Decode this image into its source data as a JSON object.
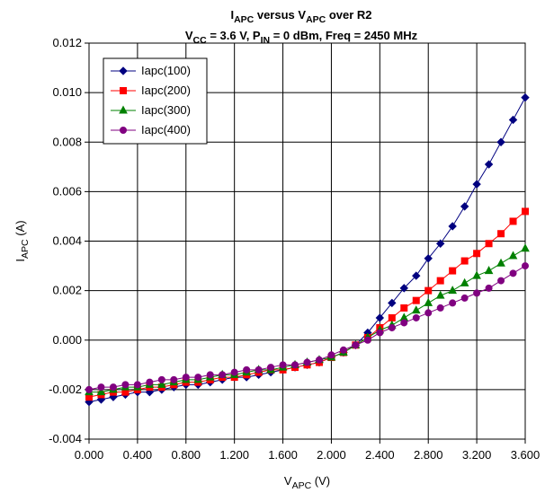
{
  "chart_data": {
    "type": "line",
    "title": [
      "I",
      {
        "text": "APC",
        "sub": true
      },
      " versus V",
      {
        "text": "APC",
        "sub": true
      },
      " over R2"
    ],
    "subtitle": [
      "V",
      {
        "text": "CC",
        "sub": true
      },
      " = 3.6 V, P",
      {
        "text": "IN",
        "sub": true
      },
      " = 0 dBm, Freq = 2450 MHz"
    ],
    "x_label": [
      "V",
      {
        "text": "APC",
        "sub": true
      },
      " (V)"
    ],
    "y_label": [
      "I",
      {
        "text": "APC",
        "sub": true
      },
      " (A)"
    ],
    "x": [
      0,
      0.1,
      0.2,
      0.3,
      0.4,
      0.5,
      0.6,
      0.7,
      0.8,
      0.9,
      1.0,
      1.1,
      1.2,
      1.3,
      1.4,
      1.5,
      1.6,
      1.7,
      1.8,
      1.9,
      2.0,
      2.1,
      2.2,
      2.3,
      2.4,
      2.5,
      2.6,
      2.7,
      2.8,
      2.9,
      3.0,
      3.1,
      3.2,
      3.3,
      3.4,
      3.5,
      3.6
    ],
    "series": [
      {
        "name": "Iapc(100)",
        "color": "#000080",
        "marker": "diamond",
        "values": [
          -0.0025,
          -0.0024,
          -0.0023,
          -0.0022,
          -0.0021,
          -0.0021,
          -0.002,
          -0.0019,
          -0.0018,
          -0.0018,
          -0.0017,
          -0.0016,
          -0.0015,
          -0.0015,
          -0.0014,
          -0.0013,
          -0.0012,
          -0.0011,
          -0.001,
          -0.0009,
          -0.0007,
          -0.0005,
          -0.0002,
          0.0003,
          0.0009,
          0.0015,
          0.0021,
          0.0026,
          0.0033,
          0.0039,
          0.0046,
          0.0054,
          0.0063,
          0.0071,
          0.008,
          0.0089,
          0.0098
        ]
      },
      {
        "name": "Iapc(200)",
        "color": "#ff0000",
        "marker": "square",
        "values": [
          -0.0023,
          -0.0022,
          -0.0021,
          -0.0021,
          -0.002,
          -0.0019,
          -0.0019,
          -0.0018,
          -0.0017,
          -0.0017,
          -0.0016,
          -0.0015,
          -0.0015,
          -0.0014,
          -0.0013,
          -0.0012,
          -0.0012,
          -0.0011,
          -0.001,
          -0.0009,
          -0.0007,
          -0.0005,
          -0.0002,
          0.0001,
          0.0005,
          0.0009,
          0.0013,
          0.0016,
          0.002,
          0.0024,
          0.0028,
          0.0032,
          0.0035,
          0.0039,
          0.0043,
          0.0048,
          0.0052
        ]
      },
      {
        "name": "Iapc(300)",
        "color": "#008000",
        "marker": "triangle",
        "values": [
          -0.0021,
          -0.0021,
          -0.002,
          -0.0019,
          -0.0019,
          -0.0018,
          -0.0018,
          -0.0017,
          -0.0016,
          -0.0016,
          -0.0015,
          -0.0014,
          -0.0014,
          -0.0013,
          -0.0012,
          -0.0012,
          -0.0011,
          -0.001,
          -0.0009,
          -0.0008,
          -0.0007,
          -0.0005,
          -0.0002,
          0.0001,
          0.0004,
          0.0006,
          0.0009,
          0.0012,
          0.0015,
          0.0018,
          0.002,
          0.0023,
          0.0026,
          0.0028,
          0.0031,
          0.0034,
          0.0037
        ]
      },
      {
        "name": "Iapc(400)",
        "color": "#800080",
        "marker": "circle",
        "values": [
          -0.002,
          -0.0019,
          -0.0019,
          -0.0018,
          -0.0018,
          -0.0017,
          -0.0016,
          -0.0016,
          -0.0015,
          -0.0015,
          -0.0014,
          -0.0014,
          -0.0013,
          -0.0012,
          -0.0012,
          -0.0011,
          -0.001,
          -0.001,
          -0.0009,
          -0.0008,
          -0.0006,
          -0.0004,
          -0.0002,
          0.0,
          0.0003,
          0.0005,
          0.0007,
          0.0009,
          0.0011,
          0.0013,
          0.0015,
          0.0017,
          0.0019,
          0.0021,
          0.0024,
          0.0027,
          0.003
        ]
      }
    ],
    "xlim": [
      0,
      3.6
    ],
    "xticks": [
      {
        "value": 0,
        "label": "0.000"
      },
      {
        "value": 0.4,
        "label": "0.400"
      },
      {
        "value": 0.8,
        "label": "0.800"
      },
      {
        "value": 1.2,
        "label": "1.200"
      },
      {
        "value": 1.6,
        "label": "1.600"
      },
      {
        "value": 2.0,
        "label": "2.000"
      },
      {
        "value": 2.4,
        "label": "2.400"
      },
      {
        "value": 2.8,
        "label": "2.800"
      },
      {
        "value": 3.2,
        "label": "3.200"
      },
      {
        "value": 3.6,
        "label": "3.600"
      }
    ],
    "ylim": [
      -0.004,
      0.012
    ],
    "yticks": [
      {
        "value": -0.004,
        "label": "-0.004"
      },
      {
        "value": -0.002,
        "label": "-0.002"
      },
      {
        "value": 0,
        "label": "0.000"
      },
      {
        "value": 0.002,
        "label": "0.002"
      },
      {
        "value": 0.004,
        "label": "0.004"
      },
      {
        "value": 0.006,
        "label": "0.006"
      },
      {
        "value": 0.008,
        "label": "0.008"
      },
      {
        "value": 0.01,
        "label": "0.010"
      },
      {
        "value": 0.012,
        "label": "0.012"
      }
    ],
    "grid": true,
    "legend": "upper-left"
  }
}
